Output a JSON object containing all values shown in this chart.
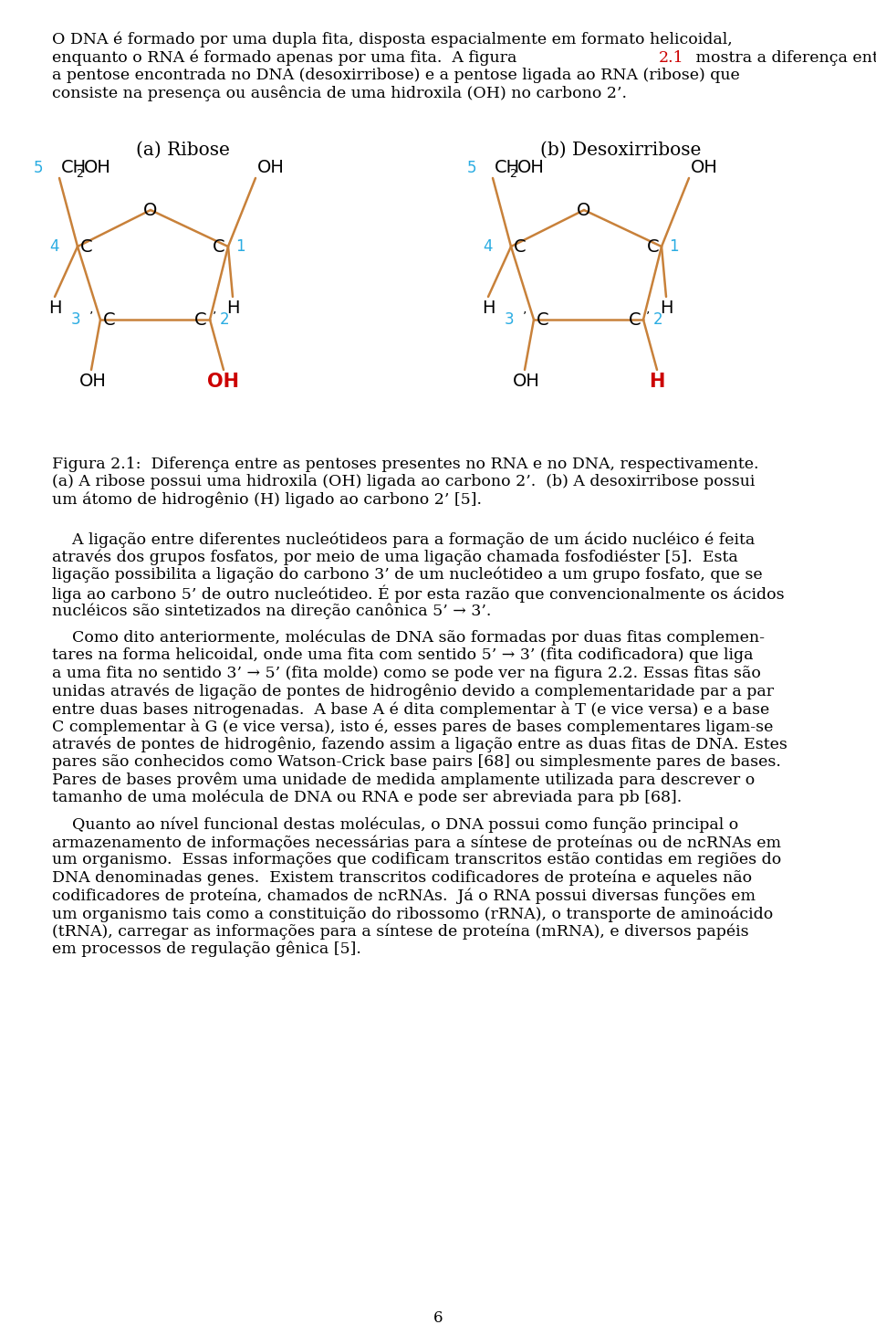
{
  "page_bg": "#ffffff",
  "text_color": "#000000",
  "orange_color": "#C8813A",
  "blue_color": "#2AACE2",
  "red_color": "#CC0000",
  "link_color": "#CC0000",
  "figsize": [
    9.6,
    14.62
  ],
  "dpi": 100,
  "para1_line1": "O DNA é formado por uma dupla fita, disposta espacialmente em formato helicoidal,",
  "para1_line2a": "enquanto o RNA é formado apenas por uma fita.  A figura ",
  "para1_line2b": "2.1",
  "para1_line2c": " mostra a diferença entre",
  "para1_line3": "a pentose encontrada no DNA (desoxirribose) e a pentose ligada ao RNA (ribose) que",
  "para1_line4": "consiste na presença ou ausência de uma hidroxila (OH) no carbono 2’.",
  "label_a": "(a) Ribose",
  "label_b": "(b) Desoxirribose",
  "fig_caption_l1": "Figura 2.1:  Diferença entre as pentoses presentes no RNA e no DNA, respectivamente.",
  "fig_caption_l2": "(a) A ribose possui uma hidroxila (OH) ligada ao carbono 2’.  (b) A desoxirribose possui",
  "fig_caption_l3": "um átomo de hidrogênio (H) ligado ao carbono 2’ [5].",
  "para2_lines": [
    "    A ligação entre diferentes nucleótideos para a formação de um ácido nucléico é feita",
    "através dos grupos fosfatos, por meio de uma ligação chamada fosfodiéster [5].  Esta",
    "ligação possibilita a ligação do carbono 3’ de um nucleótideo a um grupo fosfato, que se",
    "liga ao carbono 5’ de outro nucleótideo. É por esta razão que convencionalmente os ácidos",
    "nucléicos são sintetizados na direção canônica 5’ → 3’."
  ],
  "para3_lines": [
    "    Como dito anteriormente, moléculas de DNA são formadas por duas fitas complemen-",
    "tares na forma helicoidal, onde uma fita com sentido 5’ → 3’ (fita codificadora) que liga",
    "a uma fita no sentido 3’ → 5’ (fita molde) como se pode ver na figura 2.2. Essas fitas são",
    "unidas através de ligação de pontes de hidrogênio devido a complementaridade par a par",
    "entre duas bases nitrogenadas.  A base A é dita complementar à T (e vice versa) e a base",
    "C complementar à G (e vice versa), isto é, esses pares de bases complementares ligam-se",
    "através de pontes de hidrogênio, fazendo assim a ligação entre as duas fitas de DNA. Estes",
    "pares são conhecidos como Watson-Crick base pairs [68] ou simplesmente pares de bases.",
    "Pares de bases provêm uma unidade de medida amplamente utilizada para descrever o",
    "tamanho de uma molécula de DNA ou RNA e pode ser abreviada para pb [68]."
  ],
  "para4_lines": [
    "    Quanto ao nível funcional destas moléculas, o DNA possui como função principal o",
    "armazenamento de informações necessárias para a síntese de proteínas ou de ncRNAs em",
    "um organismo.  Essas informações que codificam transcritos estão contidas em regiões do",
    "DNA denominadas genes.  Existem transcritos codificadores de proteína e aqueles não",
    "codificadores de proteína, chamados de ncRNAs.  Já o RNA possui diversas funções em",
    "um organismo tais como a constituição do ribossomo (rRNA), o transporte de aminoácido",
    "(tRNA), carregar as informações para a síntese de proteína (mRNA), e diversos papéis",
    "em processos de regulação gênica [5]."
  ],
  "page_number": "6"
}
